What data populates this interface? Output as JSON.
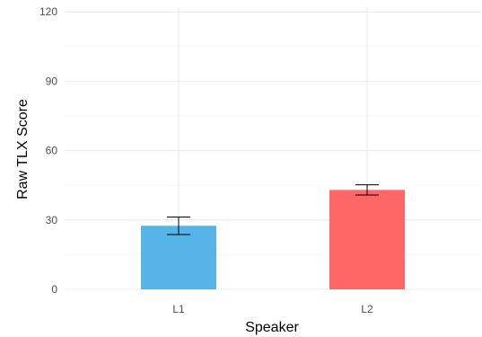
{
  "chart_data": {
    "type": "bar",
    "title": "",
    "xlabel": "Speaker",
    "ylabel": "Raw TLX Score",
    "categories": [
      "L1",
      "L2"
    ],
    "values": [
      27.5,
      43.0
    ],
    "error_low": [
      23.7,
      40.8
    ],
    "error_high": [
      31.3,
      45.2
    ],
    "bar_colors": [
      "#56B4E9",
      "#FF6666"
    ],
    "ylim": [
      0,
      122
    ],
    "yticks": [
      0,
      30,
      60,
      90,
      120
    ],
    "ytick_labels": [
      "0",
      "30",
      "60",
      "90",
      "120"
    ],
    "grid": true,
    "legend": "none"
  }
}
